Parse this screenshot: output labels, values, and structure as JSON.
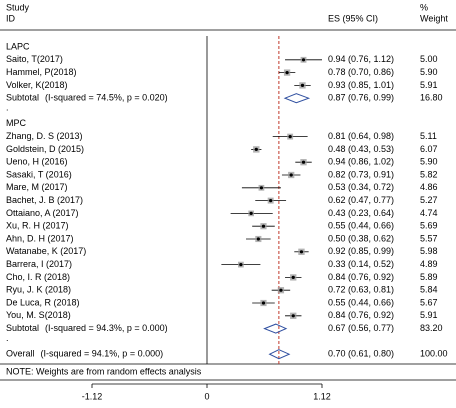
{
  "chart_data": {
    "type": "forest",
    "header": {
      "study": "Study",
      "id": "ID",
      "es": "ES (95% CI)",
      "pct": "%",
      "weight": "Weight"
    },
    "groups": [
      {
        "name": "LAPC",
        "studies": [
          {
            "name": "Saito, T(2017)",
            "es": 0.94,
            "lower": 0.76,
            "upper": 1.12,
            "weight": 5.0,
            "ci_label": "0.94 (0.76, 1.12)",
            "weight_label": "5.00"
          },
          {
            "name": "Hammel, P(2018)",
            "es": 0.78,
            "lower": 0.7,
            "upper": 0.86,
            "weight": 5.9,
            "ci_label": "0.78 (0.70, 0.86)",
            "weight_label": "5.90"
          },
          {
            "name": "Volker, K(2018)",
            "es": 0.93,
            "lower": 0.85,
            "upper": 1.01,
            "weight": 5.91,
            "ci_label": "0.93 (0.85, 1.01)",
            "weight_label": "5.91"
          }
        ],
        "subtotal": {
          "name": "Subtotal",
          "stats": "(I-squared = 74.5%, p = 0.020)",
          "es": 0.87,
          "lower": 0.76,
          "upper": 0.99,
          "weight": 16.8,
          "ci_label": "0.87 (0.76, 0.99)",
          "weight_label": "16.80"
        },
        "separator": "."
      },
      {
        "name": "MPC",
        "studies": [
          {
            "name": "Zhang, D. S (2013)",
            "es": 0.81,
            "lower": 0.64,
            "upper": 0.98,
            "weight": 5.11,
            "ci_label": "0.81 (0.64, 0.98)",
            "weight_label": "5.11"
          },
          {
            "name": "Goldstein, D (2015)",
            "es": 0.48,
            "lower": 0.43,
            "upper": 0.53,
            "weight": 6.07,
            "ci_label": "0.48 (0.43, 0.53)",
            "weight_label": "6.07"
          },
          {
            "name": "Ueno, H (2016)",
            "es": 0.94,
            "lower": 0.86,
            "upper": 1.02,
            "weight": 5.9,
            "ci_label": "0.94 (0.86, 1.02)",
            "weight_label": "5.90"
          },
          {
            "name": "Sasaki, T (2016)",
            "es": 0.82,
            "lower": 0.73,
            "upper": 0.91,
            "weight": 5.82,
            "ci_label": "0.82 (0.73, 0.91)",
            "weight_label": "5.82"
          },
          {
            "name": "Mare, M (2017)",
            "es": 0.53,
            "lower": 0.34,
            "upper": 0.72,
            "weight": 4.86,
            "ci_label": "0.53 (0.34, 0.72)",
            "weight_label": "4.86"
          },
          {
            "name": "Bachet, J. B (2017)",
            "es": 0.62,
            "lower": 0.47,
            "upper": 0.77,
            "weight": 5.27,
            "ci_label": "0.62 (0.47, 0.77)",
            "weight_label": "5.27"
          },
          {
            "name": "Ottaiano, A (2017)",
            "es": 0.43,
            "lower": 0.23,
            "upper": 0.64,
            "weight": 4.74,
            "ci_label": "0.43 (0.23, 0.64)",
            "weight_label": "4.74"
          },
          {
            "name": "Xu, R. H (2017)",
            "es": 0.55,
            "lower": 0.44,
            "upper": 0.66,
            "weight": 5.69,
            "ci_label": "0.55 (0.44, 0.66)",
            "weight_label": "5.69"
          },
          {
            "name": "Ahn, D. H (2017)",
            "es": 0.5,
            "lower": 0.38,
            "upper": 0.62,
            "weight": 5.57,
            "ci_label": "0.50 (0.38, 0.62)",
            "weight_label": "5.57"
          },
          {
            "name": "Watanabe, K (2017)",
            "es": 0.92,
            "lower": 0.85,
            "upper": 0.99,
            "weight": 5.98,
            "ci_label": "0.92 (0.85, 0.99)",
            "weight_label": "5.98"
          },
          {
            "name": "Barrera, I (2017)",
            "es": 0.33,
            "lower": 0.14,
            "upper": 0.52,
            "weight": 4.89,
            "ci_label": "0.33 (0.14, 0.52)",
            "weight_label": "4.89"
          },
          {
            "name": "Cho, I. R (2018)",
            "es": 0.84,
            "lower": 0.76,
            "upper": 0.92,
            "weight": 5.89,
            "ci_label": "0.84 (0.76, 0.92)",
            "weight_label": "5.89"
          },
          {
            "name": "Ryu, J. K (2018)",
            "es": 0.72,
            "lower": 0.63,
            "upper": 0.81,
            "weight": 5.84,
            "ci_label": "0.72 (0.63, 0.81)",
            "weight_label": "5.84"
          },
          {
            "name": "De Luca, R (2018)",
            "es": 0.55,
            "lower": 0.44,
            "upper": 0.66,
            "weight": 5.67,
            "ci_label": "0.55 (0.44, 0.66)",
            "weight_label": "5.67"
          },
          {
            "name": "You, M. S(2018)",
            "es": 0.84,
            "lower": 0.76,
            "upper": 0.92,
            "weight": 5.91,
            "ci_label": "0.84 (0.76, 0.92)",
            "weight_label": "5.91"
          }
        ],
        "subtotal": {
          "name": "Subtotal",
          "stats": "(I-squared = 94.3%, p = 0.000)",
          "es": 0.67,
          "lower": 0.56,
          "upper": 0.77,
          "weight": 83.2,
          "ci_label": "0.67 (0.56, 0.77)",
          "weight_label": "83.20"
        },
        "separator": "."
      }
    ],
    "overall": {
      "name": "Overall",
      "stats": "(I-squared = 94.1%, p = 0.000)",
      "es": 0.7,
      "lower": 0.61,
      "upper": 0.8,
      "weight": 100.0,
      "ci_label": "0.70 (0.61, 0.80)",
      "weight_label": "100.00"
    },
    "note": "NOTE: Weights are from random effects analysis",
    "xlim": [
      -1.12,
      1.12
    ],
    "xticks": [
      -1.12,
      0,
      1.12
    ],
    "null_line": 0,
    "marker_color": "#9a9a9a",
    "ci_color": "#000000",
    "diamond_color": "#2f4fa0",
    "overall_line_color": "#c0392b"
  }
}
